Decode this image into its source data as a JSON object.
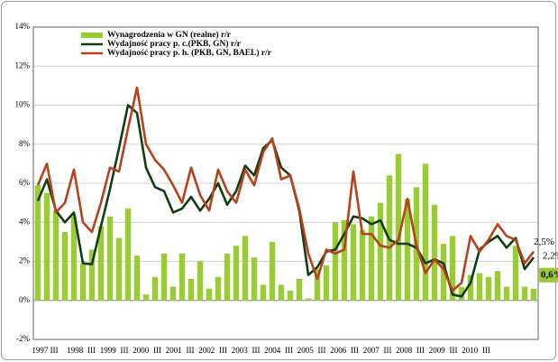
{
  "chart_data": {
    "type": "bar",
    "categories": [
      "1997 III",
      null,
      "1998",
      null,
      "III",
      null,
      "1999",
      null,
      "III",
      null,
      "2000",
      null,
      "III",
      null,
      "2001",
      null,
      "III",
      null,
      "2002",
      null,
      "III",
      null,
      "2003",
      null,
      "III",
      null,
      "2004",
      null,
      "III",
      null,
      "2005",
      null,
      "III",
      null,
      "2006",
      null,
      "III",
      null,
      "2007",
      null,
      "III",
      null,
      "2008",
      null,
      "III",
      null,
      "2009",
      null,
      "III",
      null,
      "2010",
      null,
      "III",
      null,
      null,
      null
    ],
    "series": [
      {
        "name": "Wynagrodzenia w GN (realne) r/r",
        "type": "bar",
        "color": "#99cc33",
        "values": [
          5.9,
          5.5,
          4.6,
          3.5,
          4.3,
          1.9,
          2.6,
          3.8,
          4.3,
          3.2,
          4.7,
          2.3,
          0.3,
          1.2,
          2.4,
          0.7,
          2.4,
          1.1,
          2.0,
          0.6,
          1.2,
          2.4,
          2.8,
          3.3,
          2.2,
          0.8,
          3.0,
          0.8,
          0.5,
          1.1,
          0.1,
          1.6,
          1.8,
          4.0,
          4.1,
          3.9,
          3.6,
          4.3,
          5.0,
          6.4,
          7.5,
          5.2,
          5.8,
          7.0,
          4.9,
          2.9,
          3.3,
          0.7,
          1.3,
          1.4,
          1.2,
          1.5,
          0.7,
          2.8,
          0.7,
          0.6
        ],
        "value_labels": [
          null,
          null,
          null,
          null,
          null,
          null,
          null,
          null,
          null,
          null,
          null,
          null,
          null,
          null,
          null,
          null,
          null,
          null,
          null,
          null,
          null,
          null,
          null,
          null,
          null,
          null,
          null,
          null,
          null,
          null,
          null,
          null,
          null,
          null,
          null,
          null,
          null,
          null,
          null,
          null,
          null,
          null,
          null,
          null,
          null,
          null,
          null,
          null,
          null,
          null,
          null,
          null,
          null,
          null,
          null,
          "0,6%"
        ]
      },
      {
        "name": "Wydajność pracy p. c.(PKB, GN)  r/r",
        "type": "line",
        "color": "#123d12",
        "values": [
          5.1,
          6.2,
          4.6,
          4.0,
          4.5,
          1.9,
          1.85,
          3.8,
          5.7,
          7.8,
          10.0,
          9.6,
          6.8,
          5.8,
          5.6,
          4.5,
          4.7,
          5.3,
          4.6,
          5.2,
          6.0,
          4.9,
          5.6,
          6.9,
          6.4,
          7.8,
          8.2,
          6.8,
          6.4,
          4.6,
          1.3,
          1.7,
          2.5,
          2.6,
          3.4,
          4.3,
          4.2,
          3.9,
          4.1,
          3.1,
          2.9,
          2.9,
          2.7,
          1.9,
          2.1,
          1.9,
          0.3,
          0.2,
          0.9,
          2.6,
          3.0,
          3.3,
          2.7,
          3.2,
          1.6,
          2.2
        ],
        "value_labels": [
          null,
          null,
          null,
          null,
          null,
          null,
          null,
          null,
          null,
          null,
          null,
          null,
          null,
          null,
          null,
          null,
          null,
          null,
          null,
          null,
          null,
          null,
          null,
          null,
          null,
          null,
          null,
          null,
          null,
          null,
          null,
          null,
          null,
          null,
          null,
          null,
          null,
          null,
          null,
          null,
          null,
          null,
          null,
          null,
          null,
          null,
          null,
          null,
          null,
          null,
          null,
          null,
          null,
          null,
          null,
          "2,2%"
        ]
      },
      {
        "name": "Wydajność pracy p. h. (PKB, GN, BAEL) r/r",
        "type": "line",
        "color": "#b5421a",
        "values": [
          5.9,
          7.0,
          4.5,
          5.0,
          6.7,
          4.0,
          3.5,
          5.0,
          6.8,
          6.6,
          8.8,
          10.9,
          8.0,
          7.2,
          6.7,
          5.9,
          5.0,
          6.8,
          5.4,
          4.6,
          6.7,
          5.6,
          5.0,
          6.7,
          5.9,
          7.6,
          8.3,
          6.2,
          6.4,
          4.7,
          2.4,
          1.1,
          2.6,
          2.4,
          2.6,
          6.6,
          3.4,
          3.4,
          2.8,
          2.7,
          3.1,
          5.2,
          2.8,
          1.4,
          2.1,
          1.6,
          0.5,
          0.9,
          3.3,
          2.5,
          3.1,
          3.9,
          3.3,
          3.1,
          1.9,
          2.5
        ],
        "value_labels": [
          null,
          null,
          null,
          null,
          null,
          null,
          null,
          null,
          null,
          null,
          null,
          null,
          null,
          null,
          null,
          null,
          null,
          null,
          null,
          null,
          null,
          null,
          null,
          null,
          null,
          null,
          null,
          null,
          null,
          null,
          null,
          null,
          null,
          null,
          null,
          null,
          null,
          null,
          null,
          null,
          null,
          null,
          null,
          null,
          null,
          null,
          null,
          null,
          null,
          null,
          null,
          null,
          null,
          null,
          null,
          "2,5%"
        ]
      }
    ],
    "ylim": [
      -2,
      14
    ],
    "yticks": [
      {
        "value": -2,
        "label": "-2%"
      },
      {
        "value": 0,
        "label": "0%"
      },
      {
        "value": 2,
        "label": "2%"
      },
      {
        "value": 4,
        "label": "4%"
      },
      {
        "value": 6,
        "label": "6%"
      },
      {
        "value": 8,
        "label": "8%"
      },
      {
        "value": 10,
        "label": "10%"
      },
      {
        "value": 12,
        "label": "12%"
      },
      {
        "value": 14,
        "label": "14%"
      }
    ],
    "grid": true,
    "legend": "top-left"
  }
}
